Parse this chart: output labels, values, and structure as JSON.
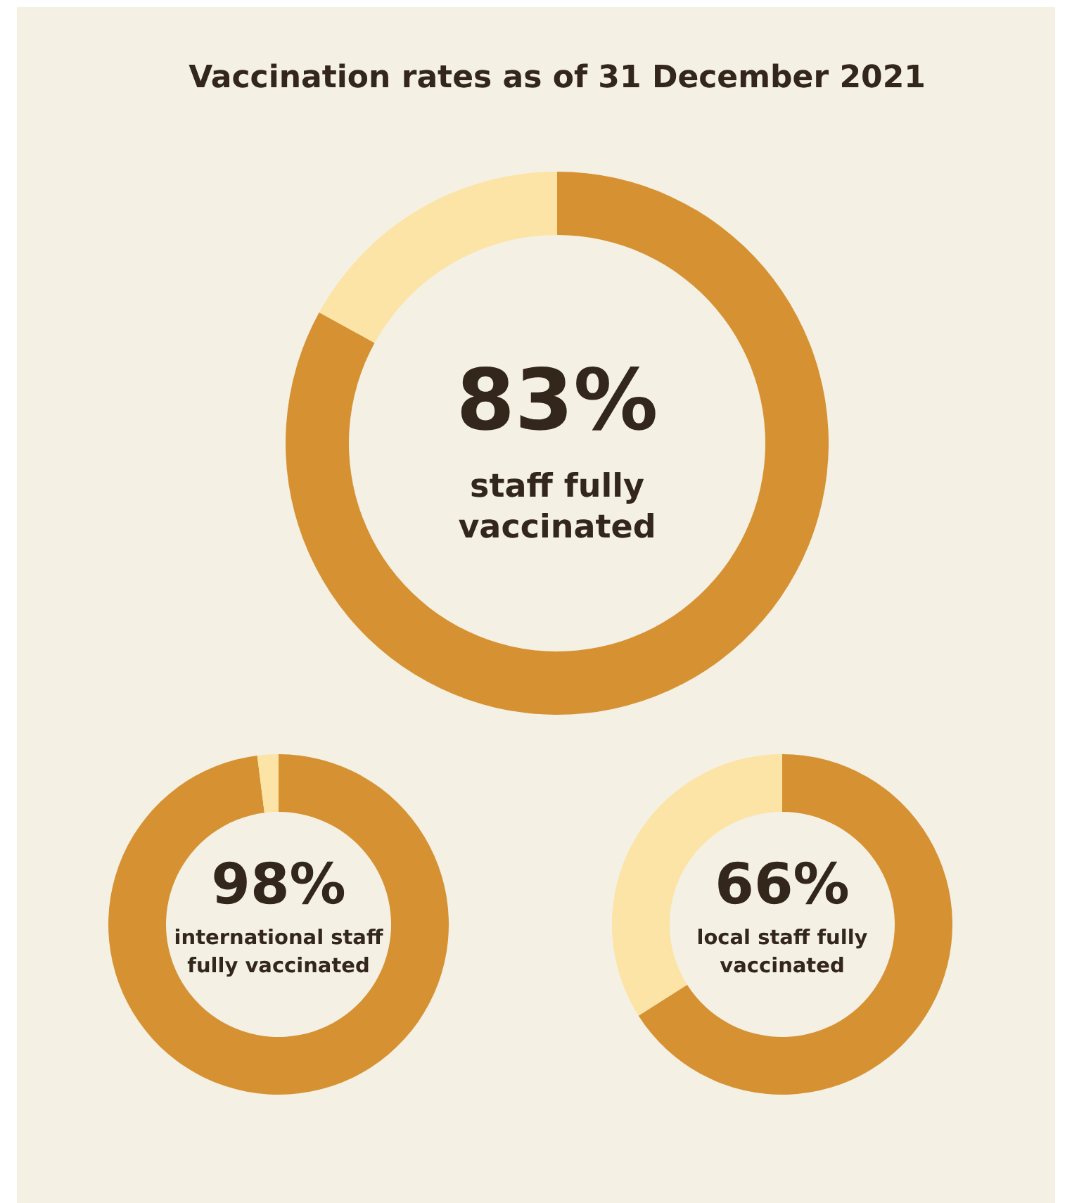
{
  "chart_data": [
    {
      "type": "donut",
      "title": "Vaccination rates as of 31 December 2021",
      "categories": [
        null,
        null
      ],
      "values": [
        83,
        17
      ],
      "colors": [
        "#d69232",
        "#fce4a6"
      ],
      "value_labels": [
        "83%",
        null
      ],
      "annotations": [
        "staff fully vaccinated"
      ]
    },
    {
      "type": "donut",
      "categories": [
        null,
        null
      ],
      "values": [
        98,
        2
      ],
      "colors": [
        "#d69232",
        "#fce4a6"
      ],
      "value_labels": [
        "98%",
        null
      ],
      "annotations": [
        "international staff fully vaccinated"
      ]
    },
    {
      "type": "donut",
      "categories": [
        null,
        null
      ],
      "values": [
        66,
        34
      ],
      "colors": [
        "#d69232",
        "#fce4a6"
      ],
      "value_labels": [
        "66%",
        null
      ],
      "annotations": [
        "local staff fully vaccinated"
      ]
    }
  ]
}
